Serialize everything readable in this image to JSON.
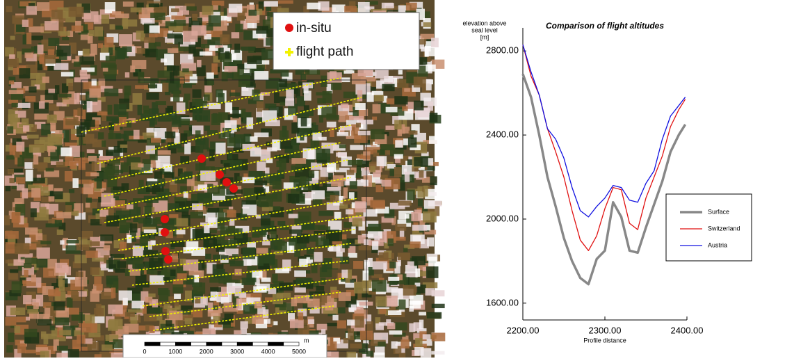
{
  "map": {
    "legend": [
      {
        "label": "in-situ",
        "color": "#e01010"
      },
      {
        "label": "flight path",
        "color": "#f2f200"
      }
    ],
    "scale_bar": {
      "ticks": [
        0,
        1000,
        2000,
        3000,
        4000,
        5000
      ],
      "unit": "m"
    }
  },
  "chart_data": {
    "type": "line",
    "title": "Comparison of flight altitudes",
    "xlabel": "Profile distance",
    "ylabel": [
      "elevation above",
      "seal level",
      "[m]"
    ],
    "x": [
      2200,
      2210,
      2220,
      2230,
      2240,
      2250,
      2260,
      2270,
      2280,
      2290,
      2300,
      2310,
      2320,
      2330,
      2340,
      2350,
      2360,
      2370,
      2380,
      2390,
      2398
    ],
    "series": [
      {
        "name": "Surface",
        "color": "#888888",
        "width": 3.5,
        "values": [
          2690,
          2580,
          2400,
          2200,
          2060,
          1910,
          1800,
          1720,
          1690,
          1810,
          1850,
          2080,
          2010,
          1850,
          1840,
          1960,
          2070,
          2180,
          2320,
          2400,
          2450
        ]
      },
      {
        "name": "Switzerland",
        "color": "#e01010",
        "width": 1.3,
        "values": [
          2830,
          2680,
          2590,
          2430,
          2320,
          2200,
          2040,
          1900,
          1850,
          1920,
          2050,
          2150,
          2140,
          1980,
          1950,
          2100,
          2200,
          2300,
          2440,
          2520,
          2570
        ]
      },
      {
        "name": "Austria",
        "color": "#1010e0",
        "width": 1.3,
        "values": [
          2830,
          2700,
          2590,
          2430,
          2380,
          2290,
          2150,
          2040,
          2010,
          2060,
          2100,
          2160,
          2150,
          2090,
          2080,
          2170,
          2230,
          2380,
          2490,
          2540,
          2580
        ]
      }
    ],
    "xlim": [
      2200,
      2400
    ],
    "xticks": [
      {
        "value": 2200,
        "label": "2200.00"
      },
      {
        "value": 2300,
        "label": "2300.00"
      },
      {
        "value": 2400,
        "label": "2400.00"
      }
    ],
    "ylim": [
      1520,
      2910
    ],
    "yticks": [
      {
        "value": 1600,
        "label": "1600.00"
      },
      {
        "value": 2000,
        "label": "2000.00"
      },
      {
        "value": 2400,
        "label": "2400.00"
      },
      {
        "value": 2800,
        "label": "2800.00"
      }
    ],
    "legend": "right"
  }
}
